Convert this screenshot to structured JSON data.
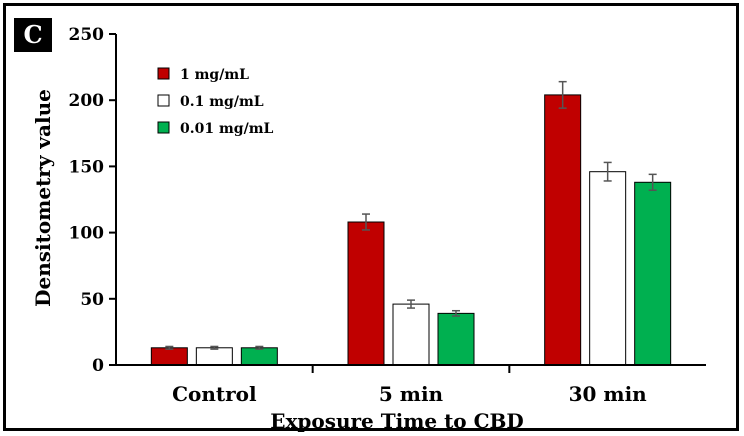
{
  "panel_label": "C",
  "chart_data": {
    "type": "bar",
    "categories": [
      "Control",
      "5 min",
      "30 min"
    ],
    "series": [
      {
        "name": "1 mg/mL",
        "color": "#c00000",
        "values": [
          13,
          108,
          204
        ],
        "errors": [
          1,
          6,
          10
        ]
      },
      {
        "name": "0.1 mg/mL",
        "color": "#ffffff",
        "values": [
          13,
          46,
          146
        ],
        "errors": [
          1,
          3,
          7
        ]
      },
      {
        "name": "0.01 mg/mL",
        "color": "#00b050",
        "values": [
          13,
          39,
          138
        ],
        "errors": [
          1,
          2,
          6
        ]
      }
    ],
    "xlabel": "Exposure Time to CBD",
    "ylabel": "Densitometry value",
    "ylim": [
      0,
      250
    ],
    "yticks": [
      0,
      50,
      100,
      150,
      200,
      250
    ],
    "grid": false,
    "legend": "top-left"
  }
}
